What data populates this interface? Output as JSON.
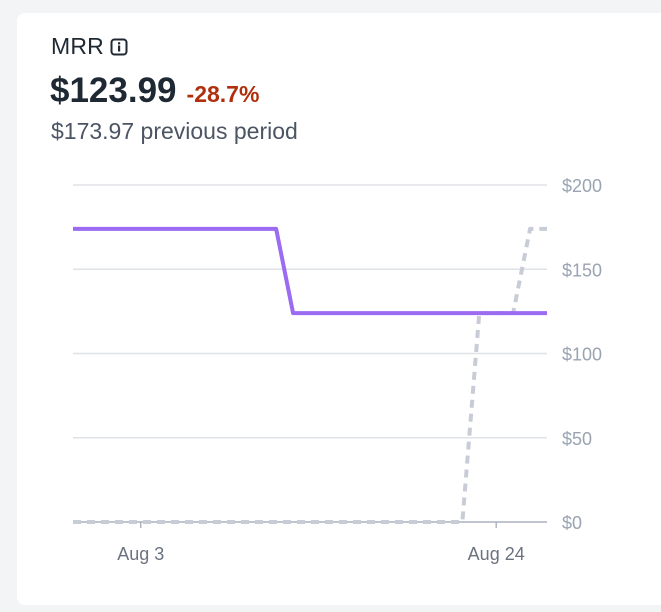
{
  "metric": {
    "title": "MRR",
    "value": "$123.99",
    "change": "-28.7%",
    "previous_label": "$173.97 previous period"
  },
  "colors": {
    "current": "#9b6bf2",
    "previous": "#c7ccd6",
    "negative": "#b0300d",
    "grid": "#dfe2e7"
  },
  "icons": {
    "info": "info-icon"
  },
  "chart_data": {
    "type": "line",
    "x_ticks": [
      "Aug 3",
      "Aug 24"
    ],
    "y_ticks": [
      "$0",
      "$50",
      "$100",
      "$150",
      "$200"
    ],
    "ylim": [
      0,
      200
    ],
    "grid": true,
    "legend": "none",
    "series": [
      {
        "style": "solid",
        "points": [
          {
            "x": "Jul 30",
            "y": 173.97
          },
          {
            "x": "Aug 11",
            "y": 173.97
          },
          {
            "x": "Aug 12",
            "y": 123.99
          },
          {
            "x": "Aug 27",
            "y": 123.99
          }
        ]
      },
      {
        "style": "dotted",
        "points": [
          {
            "x": "Jul 30",
            "y": 0
          },
          {
            "x": "Aug 22",
            "y": 0
          },
          {
            "x": "Aug 23",
            "y": 123.99
          },
          {
            "x": "Aug 25",
            "y": 123.99
          },
          {
            "x": "Aug 26",
            "y": 173.97
          },
          {
            "x": "Aug 27",
            "y": 173.97
          }
        ]
      }
    ]
  }
}
